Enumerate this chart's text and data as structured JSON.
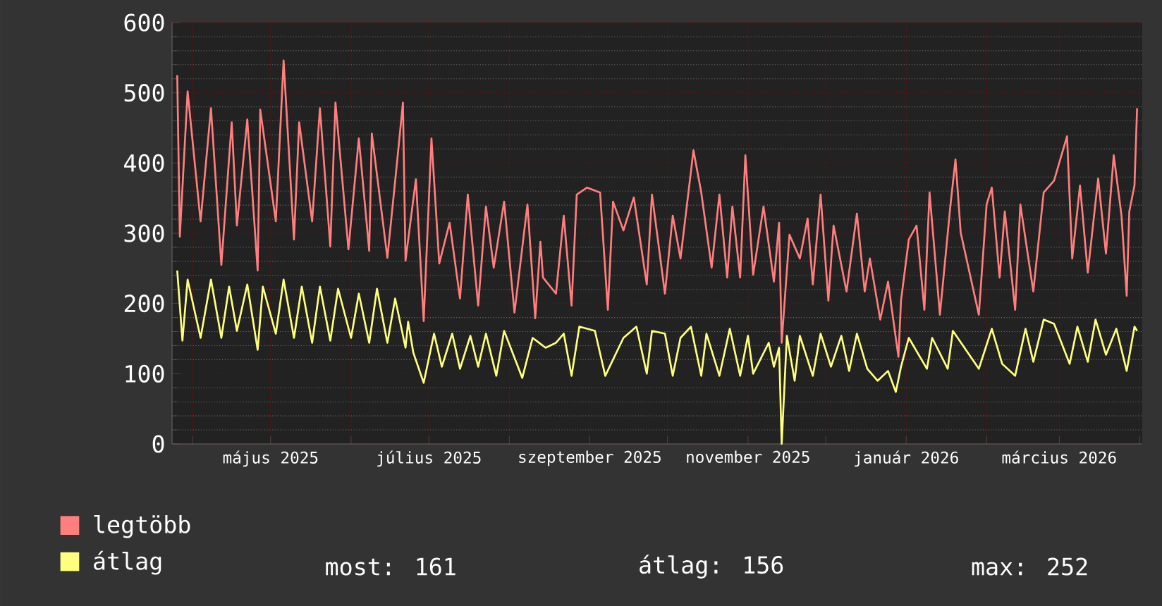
{
  "chart_data": {
    "type": "line",
    "xlim": [
      "2025-03-24",
      "2026-04-02"
    ],
    "ylim": [
      0,
      600
    ],
    "yticks": [
      0,
      100,
      200,
      300,
      400,
      500,
      600
    ],
    "xticks": [
      {
        "value": "2025-04-01",
        "label": null
      },
      {
        "value": "2025-05-01",
        "label": "május 2025"
      },
      {
        "value": "2025-06-01",
        "label": null
      },
      {
        "value": "2025-07-01",
        "label": "július 2025"
      },
      {
        "value": "2025-08-01",
        "label": null
      },
      {
        "value": "2025-09-01",
        "label": "szeptember 2025"
      },
      {
        "value": "2025-10-01",
        "label": null
      },
      {
        "value": "2025-11-01",
        "label": "november 2025"
      },
      {
        "value": "2025-12-01",
        "label": null
      },
      {
        "value": "2026-01-01",
        "label": "január 2026"
      },
      {
        "value": "2026-02-01",
        "label": null
      },
      {
        "value": "2026-03-01",
        "label": "március 2026"
      },
      {
        "value": "2026-04-01",
        "label": null
      }
    ],
    "grid": true,
    "legend": "bottom",
    "series": [
      {
        "name": "legtöbb",
        "color": "#ff7f7f",
        "x": [
          "2025-03-26",
          "2025-03-27",
          "2025-03-30",
          "2025-04-04",
          "2025-04-08",
          "2025-04-12",
          "2025-04-16",
          "2025-04-18",
          "2025-04-22",
          "2025-04-26",
          "2025-04-27",
          "2025-05-03",
          "2025-05-06",
          "2025-05-10",
          "2025-05-12",
          "2025-05-17",
          "2025-05-20",
          "2025-05-24",
          "2025-05-26",
          "2025-05-31",
          "2025-06-04",
          "2025-06-08",
          "2025-06-09",
          "2025-06-15",
          "2025-06-19",
          "2025-06-21",
          "2025-06-22",
          "2025-06-26",
          "2025-06-29",
          "2025-07-02",
          "2025-07-05",
          "2025-07-09",
          "2025-07-13",
          "2025-07-16",
          "2025-07-20",
          "2025-07-23",
          "2025-07-26",
          "2025-07-30",
          "2025-08-03",
          "2025-08-08",
          "2025-08-11",
          "2025-08-13",
          "2025-08-14",
          "2025-08-19",
          "2025-08-22",
          "2025-08-25",
          "2025-08-27",
          "2025-08-31",
          "2025-09-05",
          "2025-09-08",
          "2025-09-10",
          "2025-09-14",
          "2025-09-18",
          "2025-09-23",
          "2025-09-25",
          "2025-09-30",
          "2025-10-03",
          "2025-10-06",
          "2025-10-11",
          "2025-10-14",
          "2025-10-18",
          "2025-10-21",
          "2025-10-24",
          "2025-10-26",
          "2025-10-29",
          "2025-10-31",
          "2025-11-03",
          "2025-11-07",
          "2025-11-11",
          "2025-11-13",
          "2025-11-14",
          "2025-11-17",
          "2025-11-21",
          "2025-11-24",
          "2025-11-26",
          "2025-11-29",
          "2025-12-02",
          "2025-12-04",
          "2025-12-09",
          "2025-12-13",
          "2025-12-16",
          "2025-12-18",
          "2025-12-22",
          "2025-12-25",
          "2025-12-29",
          "2025-12-30",
          "2026-01-02",
          "2026-01-05",
          "2026-01-08",
          "2026-01-10",
          "2026-01-14",
          "2026-01-18",
          "2026-01-20",
          "2026-01-22",
          "2026-01-29",
          "2026-02-01",
          "2026-02-03",
          "2026-02-06",
          "2026-02-08",
          "2026-02-12",
          "2026-02-14",
          "2026-02-19",
          "2026-02-23",
          "2026-02-27",
          "2026-03-04",
          "2026-03-06",
          "2026-03-09",
          "2026-03-12",
          "2026-03-16",
          "2026-03-19",
          "2026-03-22",
          "2026-03-25",
          "2026-03-27",
          "2026-03-28",
          "2026-03-30",
          "2026-03-31"
        ],
        "values": [
          525,
          295,
          502,
          317,
          478,
          255,
          458,
          311,
          462,
          247,
          476,
          317,
          546,
          291,
          458,
          317,
          478,
          281,
          486,
          277,
          435,
          275,
          442,
          265,
          411,
          486,
          261,
          377,
          175,
          435,
          257,
          315,
          207,
          355,
          197,
          338,
          251,
          345,
          187,
          341,
          179,
          288,
          237,
          214,
          325,
          197,
          355,
          365,
          358,
          191,
          345,
          304,
          351,
          227,
          355,
          214,
          325,
          264,
          418,
          358,
          251,
          355,
          237,
          338,
          237,
          411,
          241,
          338,
          231,
          315,
          144,
          298,
          264,
          321,
          227,
          355,
          204,
          311,
          217,
          328,
          217,
          264,
          177,
          231,
          124,
          204,
          291,
          311,
          191,
          358,
          184,
          338,
          405,
          301,
          184,
          341,
          365,
          237,
          331,
          191,
          341,
          217,
          358,
          375,
          438,
          264,
          368,
          244,
          378,
          271,
          411,
          325,
          211,
          331,
          368,
          478
        ]
      },
      {
        "name": "átlag",
        "color": "#ffff7f",
        "x": [
          "2025-03-26",
          "2025-03-28",
          "2025-03-30",
          "2025-04-04",
          "2025-04-08",
          "2025-04-12",
          "2025-04-15",
          "2025-04-18",
          "2025-04-22",
          "2025-04-26",
          "2025-04-28",
          "2025-05-03",
          "2025-05-06",
          "2025-05-10",
          "2025-05-13",
          "2025-05-17",
          "2025-05-20",
          "2025-05-24",
          "2025-05-27",
          "2025-06-01",
          "2025-06-04",
          "2025-06-08",
          "2025-06-11",
          "2025-06-15",
          "2025-06-18",
          "2025-06-22",
          "2025-06-23",
          "2025-06-25",
          "2025-06-29",
          "2025-07-03",
          "2025-07-06",
          "2025-07-10",
          "2025-07-13",
          "2025-07-17",
          "2025-07-20",
          "2025-07-23",
          "2025-07-27",
          "2025-07-30",
          "2025-08-06",
          "2025-08-10",
          "2025-08-15",
          "2025-08-19",
          "2025-08-22",
          "2025-08-25",
          "2025-08-28",
          "2025-09-03",
          "2025-09-07",
          "2025-09-14",
          "2025-09-19",
          "2025-09-23",
          "2025-09-25",
          "2025-09-30",
          "2025-10-03",
          "2025-10-06",
          "2025-10-10",
          "2025-10-14",
          "2025-10-16",
          "2025-10-21",
          "2025-10-25",
          "2025-10-29",
          "2025-11-01",
          "2025-11-03",
          "2025-11-09",
          "2025-11-11",
          "2025-11-13",
          "2025-11-14",
          "2025-11-16",
          "2025-11-19",
          "2025-11-21",
          "2025-11-26",
          "2025-11-29",
          "2025-12-03",
          "2025-12-07",
          "2025-12-10",
          "2025-12-13",
          "2025-12-17",
          "2025-12-21",
          "2025-12-25",
          "2025-12-28",
          "2025-12-30",
          "2026-01-02",
          "2026-01-09",
          "2026-01-11",
          "2026-01-17",
          "2026-01-19",
          "2026-01-29",
          "2026-02-03",
          "2026-02-07",
          "2026-02-12",
          "2026-02-16",
          "2026-02-19",
          "2026-02-23",
          "2026-02-27",
          "2026-03-05",
          "2026-03-08",
          "2026-03-12",
          "2026-03-15",
          "2026-03-19",
          "2026-03-23",
          "2026-03-27",
          "2026-03-30",
          "2026-03-31"
        ],
        "values": [
          247,
          147,
          234,
          151,
          234,
          151,
          224,
          161,
          227,
          134,
          224,
          157,
          234,
          151,
          224,
          144,
          224,
          147,
          221,
          151,
          214,
          144,
          221,
          144,
          207,
          137,
          174,
          130,
          87,
          157,
          110,
          157,
          107,
          154,
          110,
          157,
          97,
          161,
          94,
          151,
          137,
          144,
          157,
          97,
          167,
          161,
          97,
          151,
          167,
          100,
          161,
          157,
          97,
          151,
          167,
          97,
          157,
          97,
          164,
          97,
          154,
          100,
          144,
          110,
          137,
          0,
          154,
          90,
          154,
          97,
          157,
          110,
          154,
          104,
          157,
          107,
          90,
          104,
          74,
          110,
          151,
          107,
          151,
          107,
          161,
          107,
          164,
          114,
          97,
          164,
          117,
          177,
          171,
          114,
          167,
          117,
          177,
          127,
          164,
          104,
          167,
          161
        ]
      }
    ],
    "annotations": [
      "most: 161",
      "átlag: 156",
      "max: 252"
    ]
  }
}
